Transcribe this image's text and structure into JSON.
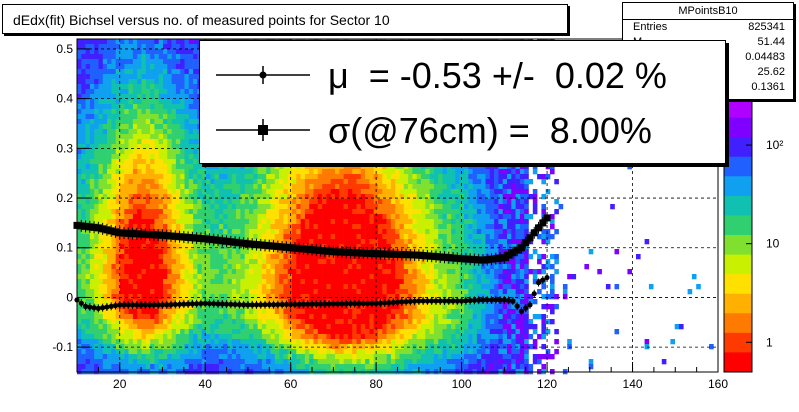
{
  "title": "dEdx(fit) Bichsel versus no. of measured points for Sector 10",
  "stats": {
    "name": "MPointsB10",
    "rows": [
      {
        "label": "Entries",
        "value": "825341"
      },
      {
        "label": "M",
        "value": "51.44"
      },
      {
        "label": "",
        "value": "0.04483"
      },
      {
        "label": "",
        "value": "25.62"
      },
      {
        "label": "",
        "value": "0.1361"
      }
    ]
  },
  "legend": {
    "mu_text": "μ  = -0.53 +/-  0.02 %",
    "sigma_text": "σ(@76cm) =  8.00%"
  },
  "chart_data": {
    "type": "heatmap",
    "title": "dEdx(fit) Bichsel versus no. of measured points for Sector 10",
    "xlim": [
      10,
      160
    ],
    "ylim": [
      -0.15,
      0.52
    ],
    "x_ticks": [
      20,
      40,
      60,
      80,
      100,
      120,
      140,
      160
    ],
    "y_ticks": [
      -0.1,
      0,
      0.1,
      0.2,
      0.3,
      0.4,
      0.5
    ],
    "y_tick_labels": [
      "-0.1",
      "0",
      "0.1",
      "0.2",
      "0.3",
      "0.4",
      "0.5"
    ],
    "colorbar": {
      "log": true,
      "range": [
        0.5,
        300
      ],
      "tick_labels": [
        "1",
        "10",
        "10²"
      ],
      "tick_values": [
        1,
        10,
        100
      ]
    },
    "grid": true,
    "series": [
      {
        "marker": "circle",
        "x": [
          10,
          12,
          15,
          20,
          30,
          40,
          50,
          60,
          70,
          80,
          90,
          100,
          105,
          108,
          110,
          112,
          114,
          116,
          118,
          120
        ],
        "y": [
          -0.005,
          -0.018,
          -0.022,
          -0.015,
          -0.015,
          -0.012,
          -0.015,
          -0.014,
          -0.013,
          -0.012,
          -0.007,
          -0.007,
          -0.005,
          -0.005,
          -0.005,
          -0.007,
          -0.028,
          -0.015,
          0.03,
          0.04
        ]
      },
      {
        "marker": "square",
        "x": [
          10,
          15,
          20,
          30,
          40,
          50,
          60,
          70,
          80,
          90,
          100,
          105,
          108,
          110,
          112,
          114,
          116,
          118,
          120
        ],
        "y": [
          0.145,
          0.14,
          0.13,
          0.125,
          0.118,
          0.108,
          0.1,
          0.092,
          0.088,
          0.085,
          0.078,
          0.075,
          0.078,
          0.08,
          0.09,
          0.1,
          0.12,
          0.14,
          0.16
        ]
      }
    ]
  }
}
